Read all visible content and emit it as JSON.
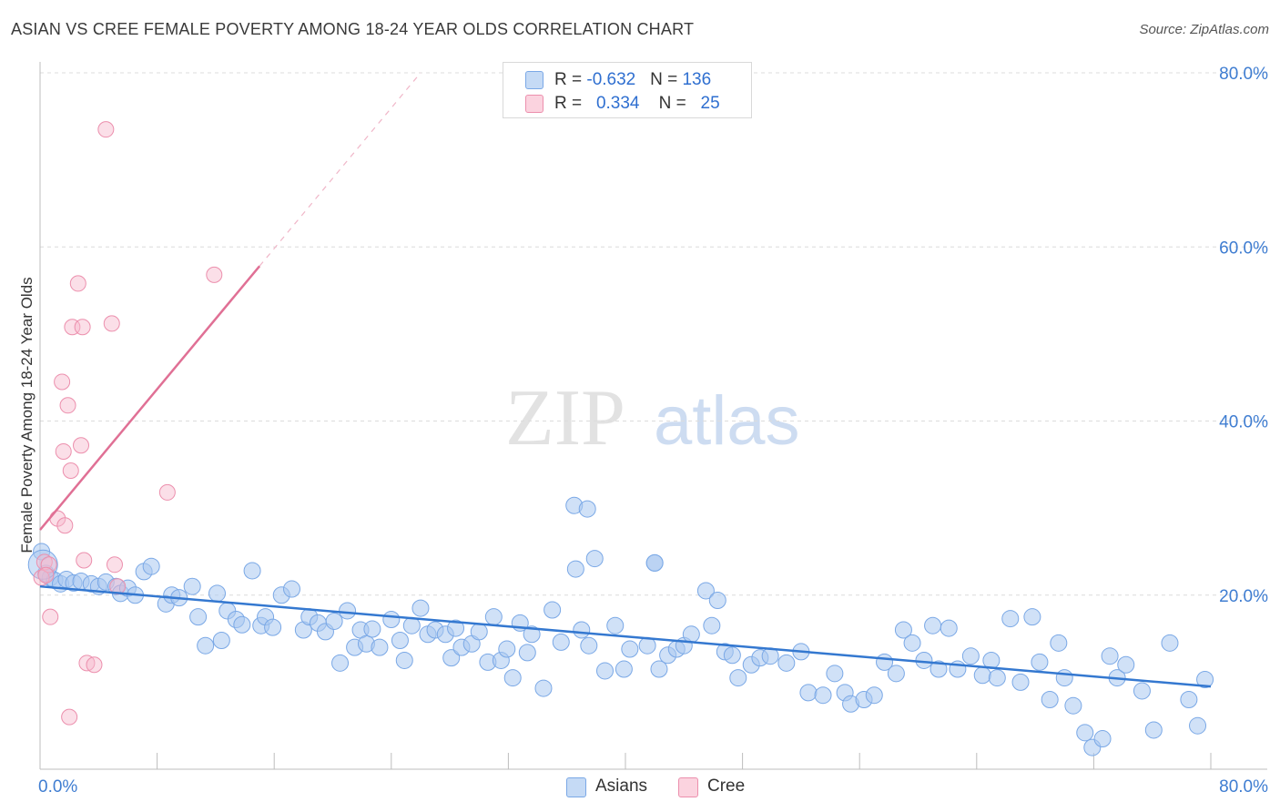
{
  "title": "ASIAN VS CREE FEMALE POVERTY AMONG 18-24 YEAR OLDS CORRELATION CHART",
  "source": "Source: ZipAtlas.com",
  "watermark": {
    "zip": "ZIP",
    "atlas": "atlas"
  },
  "legend": {
    "asians": {
      "r_label": "R = ",
      "r_value": "-0.632",
      "n_label": "N = ",
      "n_value": "136",
      "color": "#a9c8f0"
    },
    "cree": {
      "r_label": "R = ",
      "r_value": "0.334",
      "n_label": "N = ",
      "n_value": "25",
      "color": "#f6b8cb"
    }
  },
  "bottom_legend": {
    "asians": "Asians",
    "cree": "Cree"
  },
  "chart_data": {
    "type": "scatter",
    "xlabel": "",
    "ylabel": "Female Poverty Among 18-24 Year Olds",
    "xlim": [
      0,
      80
    ],
    "ylim": [
      0,
      80
    ],
    "x_tick_labels": [
      "0.0%",
      "80.0%"
    ],
    "y_tick_labels": [
      "20.0%",
      "40.0%",
      "60.0%",
      "80.0%"
    ],
    "y_ticks": [
      20,
      40,
      60,
      80
    ],
    "grid": true,
    "legend_position": "top-center",
    "series": [
      {
        "name": "Asians",
        "color": "#a9c8f0",
        "stroke": "#7aa8e6",
        "trend": {
          "x": [
            0,
            80
          ],
          "y": [
            21.0,
            9.5
          ],
          "color": "#3478d0"
        },
        "points": [
          [
            0.1,
            25.0
          ],
          [
            0.4,
            22.5
          ],
          [
            0.7,
            22.0
          ],
          [
            1.0,
            21.7
          ],
          [
            1.4,
            21.3
          ],
          [
            1.8,
            21.8
          ],
          [
            2.3,
            21.4
          ],
          [
            2.8,
            21.6
          ],
          [
            3.5,
            21.3
          ],
          [
            4.0,
            21.0
          ],
          [
            4.5,
            21.5
          ],
          [
            5.2,
            21.0
          ],
          [
            5.5,
            20.2
          ],
          [
            6.0,
            20.8
          ],
          [
            6.5,
            20.0
          ],
          [
            7.1,
            22.7
          ],
          [
            7.6,
            23.3
          ],
          [
            8.6,
            19.0
          ],
          [
            9.0,
            20.0
          ],
          [
            9.5,
            19.7
          ],
          [
            10.4,
            21.0
          ],
          [
            10.8,
            17.5
          ],
          [
            11.3,
            14.2
          ],
          [
            12.1,
            20.2
          ],
          [
            12.4,
            14.8
          ],
          [
            12.8,
            18.2
          ],
          [
            13.4,
            17.2
          ],
          [
            13.8,
            16.6
          ],
          [
            14.5,
            22.8
          ],
          [
            15.1,
            16.5
          ],
          [
            15.4,
            17.5
          ],
          [
            15.9,
            16.3
          ],
          [
            16.5,
            20.0
          ],
          [
            17.2,
            20.7
          ],
          [
            18.0,
            16.0
          ],
          [
            18.4,
            17.5
          ],
          [
            19.0,
            16.8
          ],
          [
            19.5,
            15.8
          ],
          [
            20.1,
            17.0
          ],
          [
            20.5,
            12.2
          ],
          [
            21.0,
            18.2
          ],
          [
            21.5,
            14.0
          ],
          [
            21.9,
            16.0
          ],
          [
            22.3,
            14.4
          ],
          [
            22.7,
            16.1
          ],
          [
            23.2,
            14.0
          ],
          [
            24.0,
            17.2
          ],
          [
            24.6,
            14.8
          ],
          [
            24.9,
            12.5
          ],
          [
            25.4,
            16.5
          ],
          [
            26.0,
            18.5
          ],
          [
            26.5,
            15.5
          ],
          [
            27.0,
            16.0
          ],
          [
            27.7,
            15.5
          ],
          [
            28.1,
            12.8
          ],
          [
            28.4,
            16.2
          ],
          [
            28.8,
            14.0
          ],
          [
            29.5,
            14.4
          ],
          [
            30.0,
            15.8
          ],
          [
            30.6,
            12.3
          ],
          [
            31.0,
            17.5
          ],
          [
            31.5,
            12.5
          ],
          [
            31.9,
            13.8
          ],
          [
            32.3,
            10.5
          ],
          [
            32.8,
            16.8
          ],
          [
            33.3,
            13.4
          ],
          [
            33.6,
            15.5
          ],
          [
            34.4,
            9.3
          ],
          [
            35.0,
            18.3
          ],
          [
            35.6,
            14.6
          ],
          [
            36.6,
            23.0
          ],
          [
            37.0,
            16.0
          ],
          [
            37.5,
            14.2
          ],
          [
            37.9,
            24.2
          ],
          [
            38.6,
            11.3
          ],
          [
            39.3,
            16.5
          ],
          [
            39.9,
            11.5
          ],
          [
            40.3,
            13.8
          ],
          [
            41.5,
            14.2
          ],
          [
            42.0,
            23.7
          ],
          [
            42.3,
            11.5
          ],
          [
            42.9,
            13.1
          ],
          [
            43.5,
            13.8
          ],
          [
            44.0,
            14.2
          ],
          [
            44.5,
            15.5
          ],
          [
            45.5,
            20.5
          ],
          [
            45.9,
            16.5
          ],
          [
            46.3,
            19.4
          ],
          [
            46.8,
            13.5
          ],
          [
            47.3,
            13.1
          ],
          [
            47.7,
            10.5
          ],
          [
            48.6,
            12.0
          ],
          [
            49.2,
            12.8
          ],
          [
            49.9,
            13.0
          ],
          [
            51.0,
            12.2
          ],
          [
            52.0,
            13.5
          ],
          [
            52.5,
            8.8
          ],
          [
            53.5,
            8.5
          ],
          [
            54.3,
            11.0
          ],
          [
            55.0,
            8.8
          ],
          [
            55.4,
            7.5
          ],
          [
            56.3,
            8.0
          ],
          [
            57.0,
            8.5
          ],
          [
            57.7,
            12.3
          ],
          [
            58.5,
            11.0
          ],
          [
            59.0,
            16.0
          ],
          [
            59.6,
            14.5
          ],
          [
            60.4,
            12.5
          ],
          [
            61.0,
            16.5
          ],
          [
            61.4,
            11.5
          ],
          [
            62.1,
            16.2
          ],
          [
            62.7,
            11.5
          ],
          [
            63.6,
            13.0
          ],
          [
            64.4,
            10.8
          ],
          [
            65.0,
            12.5
          ],
          [
            65.4,
            10.5
          ],
          [
            66.3,
            17.3
          ],
          [
            67.0,
            10.0
          ],
          [
            67.8,
            17.5
          ],
          [
            68.3,
            12.3
          ],
          [
            69.0,
            8.0
          ],
          [
            69.6,
            14.5
          ],
          [
            70.0,
            10.5
          ],
          [
            70.6,
            7.3
          ],
          [
            71.4,
            4.2
          ],
          [
            71.9,
            2.5
          ],
          [
            72.6,
            3.5
          ],
          [
            73.1,
            13.0
          ],
          [
            73.6,
            10.5
          ],
          [
            74.2,
            12.0
          ],
          [
            75.3,
            9.0
          ],
          [
            76.1,
            4.5
          ],
          [
            77.2,
            14.5
          ],
          [
            78.5,
            8.0
          ],
          [
            79.1,
            5.0
          ],
          [
            79.6,
            10.3
          ]
        ],
        "big_points": [
          [
            0.2,
            23.5
          ],
          [
            36.5,
            30.3
          ],
          [
            37.4,
            29.9
          ],
          [
            42.0,
            23.7
          ]
        ]
      },
      {
        "name": "Cree",
        "color": "#f6b8cb",
        "stroke": "#ec8fad",
        "trend": {
          "x": [
            0,
            15
          ],
          "y": [
            27.5,
            57.8
          ],
          "dash_to": [
            26,
            80
          ],
          "color": "#e07095"
        },
        "points": [
          [
            0.1,
            22.0
          ],
          [
            0.3,
            23.8
          ],
          [
            0.6,
            23.5
          ],
          [
            0.7,
            17.5
          ],
          [
            1.2,
            28.8
          ],
          [
            1.5,
            44.5
          ],
          [
            1.6,
            36.5
          ],
          [
            1.7,
            28.0
          ],
          [
            1.9,
            41.8
          ],
          [
            2.0,
            6.0
          ],
          [
            2.1,
            34.3
          ],
          [
            2.2,
            50.8
          ],
          [
            2.6,
            55.8
          ],
          [
            2.8,
            37.2
          ],
          [
            2.9,
            50.8
          ],
          [
            3.0,
            24.0
          ],
          [
            3.2,
            12.2
          ],
          [
            3.7,
            12.0
          ],
          [
            4.5,
            73.5
          ],
          [
            4.9,
            51.2
          ],
          [
            5.1,
            23.5
          ],
          [
            5.3,
            21.0
          ],
          [
            8.7,
            31.8
          ],
          [
            11.9,
            56.8
          ],
          [
            0.4,
            22.3
          ]
        ]
      }
    ]
  }
}
